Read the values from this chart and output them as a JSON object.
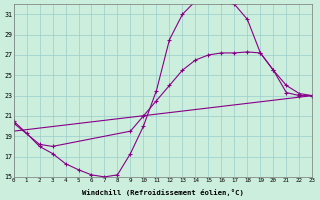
{
  "xlabel": "Windchill (Refroidissement éolien,°C)",
  "bg_color": "#cceedd",
  "line_color": "#880088",
  "grid_color": "#99cccc",
  "xlim": [
    0,
    23
  ],
  "ylim": [
    15,
    32
  ],
  "xticks": [
    0,
    1,
    2,
    3,
    4,
    5,
    6,
    7,
    8,
    9,
    10,
    11,
    12,
    13,
    14,
    15,
    16,
    17,
    18,
    19,
    20,
    21,
    22,
    23
  ],
  "yticks": [
    15,
    17,
    19,
    21,
    23,
    25,
    27,
    29,
    31
  ],
  "series": [
    {
      "x": [
        0,
        1,
        2,
        3,
        4,
        5,
        6,
        7,
        8,
        9,
        10,
        11,
        12,
        13,
        14,
        15,
        16,
        17,
        18,
        19,
        20,
        21,
        22,
        23
      ],
      "y": [
        20.5,
        19.3,
        18.0,
        17.3,
        16.3,
        15.7,
        15.2,
        15.0,
        15.2,
        17.3,
        20.0,
        23.5,
        28.5,
        31.0,
        32.3,
        32.5,
        32.2,
        32.0,
        30.5,
        27.2,
        25.5,
        23.3,
        23.0,
        23.0
      ],
      "has_markers": true
    },
    {
      "x": [
        0,
        23
      ],
      "y": [
        19.5,
        23.0
      ],
      "has_markers": false
    },
    {
      "x": [
        0,
        2,
        3,
        9,
        10,
        11,
        12,
        13,
        14,
        15,
        16,
        17,
        18,
        19,
        20,
        21,
        22,
        23
      ],
      "y": [
        20.3,
        18.2,
        18.0,
        19.5,
        21.0,
        22.5,
        24.0,
        25.5,
        26.5,
        27.0,
        27.2,
        27.2,
        27.3,
        27.2,
        25.5,
        24.0,
        23.2,
        23.0
      ],
      "has_markers": true
    }
  ]
}
